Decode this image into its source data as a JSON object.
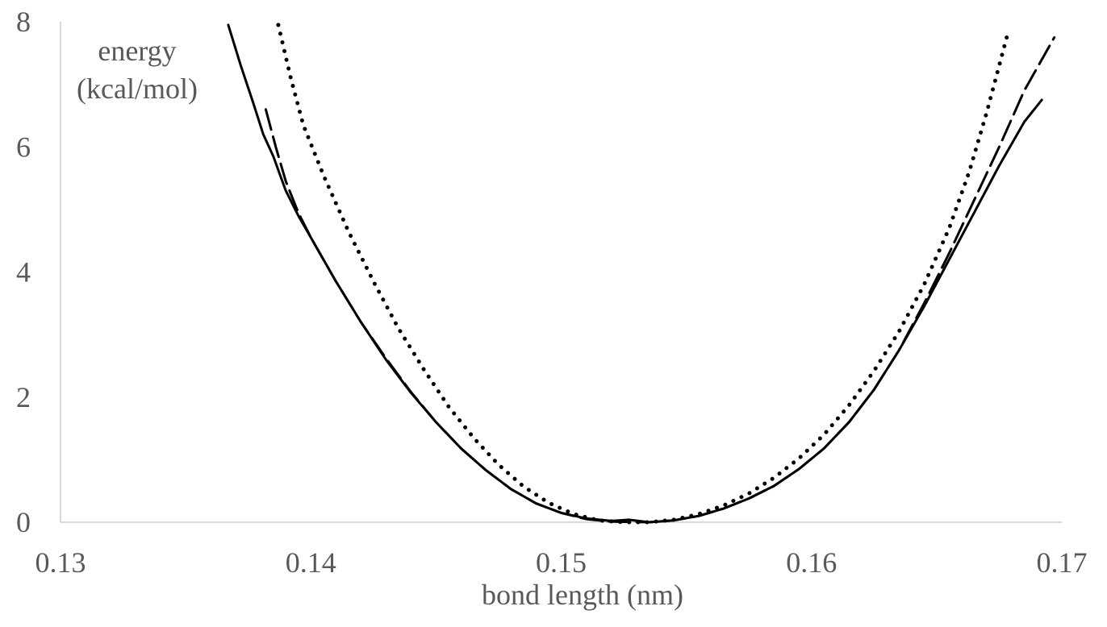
{
  "chart_data": {
    "type": "line",
    "xlabel": "bond length (nm)",
    "ylabel_lines": [
      "energy",
      "(kcal/mol)"
    ],
    "xlim": [
      0.13,
      0.17
    ],
    "ylim": [
      0,
      8
    ],
    "x_ticks": [
      "0.13",
      "0.14",
      "0.15",
      "0.16",
      "0.17"
    ],
    "y_ticks": [
      "0",
      "2",
      "4",
      "6",
      "8"
    ],
    "grid": false,
    "legend": "none",
    "series": [
      {
        "style": "solid",
        "color": "#000000",
        "points": [
          [
            0.1367,
            7.95
          ],
          [
            0.1372,
            7.3
          ],
          [
            0.1377,
            6.7
          ],
          [
            0.1381,
            6.2
          ],
          [
            0.1385,
            5.85
          ],
          [
            0.139,
            5.3
          ],
          [
            0.1395,
            4.9
          ],
          [
            0.14,
            4.55
          ],
          [
            0.141,
            3.85
          ],
          [
            0.142,
            3.2
          ],
          [
            0.143,
            2.6
          ],
          [
            0.144,
            2.07
          ],
          [
            0.145,
            1.6
          ],
          [
            0.146,
            1.18
          ],
          [
            0.147,
            0.83
          ],
          [
            0.148,
            0.53
          ],
          [
            0.149,
            0.3
          ],
          [
            0.15,
            0.15
          ],
          [
            0.151,
            0.06
          ],
          [
            0.152,
            0.02
          ],
          [
            0.1527,
            0.04
          ],
          [
            0.1535,
            0.0
          ],
          [
            0.1545,
            0.03
          ],
          [
            0.1555,
            0.1
          ],
          [
            0.1565,
            0.22
          ],
          [
            0.1575,
            0.38
          ],
          [
            0.1585,
            0.58
          ],
          [
            0.1595,
            0.85
          ],
          [
            0.1605,
            1.18
          ],
          [
            0.1615,
            1.6
          ],
          [
            0.1625,
            2.12
          ],
          [
            0.1635,
            2.75
          ],
          [
            0.1645,
            3.45
          ],
          [
            0.1655,
            4.2
          ],
          [
            0.1665,
            4.95
          ],
          [
            0.1675,
            5.7
          ],
          [
            0.1685,
            6.4
          ],
          [
            0.1692,
            6.75
          ]
        ]
      },
      {
        "style": "dashed",
        "color": "#000000",
        "points": [
          [
            0.1382,
            6.6
          ],
          [
            0.1386,
            6.0
          ],
          [
            0.139,
            5.45
          ],
          [
            0.1395,
            4.95
          ],
          [
            0.14,
            4.55
          ],
          [
            0.141,
            3.85
          ],
          [
            0.142,
            3.2
          ],
          [
            0.143,
            2.62
          ],
          [
            0.144,
            2.08
          ],
          [
            0.145,
            1.6
          ],
          [
            0.146,
            1.18
          ],
          [
            0.147,
            0.83
          ],
          [
            0.148,
            0.53
          ],
          [
            0.149,
            0.3
          ],
          [
            0.15,
            0.15
          ],
          [
            0.151,
            0.05
          ],
          [
            0.152,
            0.01
          ],
          [
            0.1535,
            0.0
          ],
          [
            0.1545,
            0.03
          ],
          [
            0.1555,
            0.1
          ],
          [
            0.1565,
            0.22
          ],
          [
            0.1575,
            0.38
          ],
          [
            0.1585,
            0.58
          ],
          [
            0.1595,
            0.85
          ],
          [
            0.1605,
            1.18
          ],
          [
            0.1615,
            1.6
          ],
          [
            0.1625,
            2.12
          ],
          [
            0.1635,
            2.75
          ],
          [
            0.1645,
            3.5
          ],
          [
            0.1655,
            4.3
          ],
          [
            0.1665,
            5.15
          ],
          [
            0.1675,
            6.0
          ],
          [
            0.1685,
            6.9
          ],
          [
            0.1697,
            7.75
          ]
        ]
      },
      {
        "style": "dotted",
        "color": "#000000",
        "points": [
          [
            0.1387,
            7.95
          ],
          [
            0.1392,
            7.1
          ],
          [
            0.1397,
            6.35
          ],
          [
            0.1405,
            5.55
          ],
          [
            0.1415,
            4.65
          ],
          [
            0.1425,
            3.85
          ],
          [
            0.1435,
            3.1
          ],
          [
            0.1445,
            2.45
          ],
          [
            0.1455,
            1.85
          ],
          [
            0.1465,
            1.35
          ],
          [
            0.1475,
            0.92
          ],
          [
            0.1485,
            0.57
          ],
          [
            0.1495,
            0.31
          ],
          [
            0.1505,
            0.13
          ],
          [
            0.1515,
            0.03
          ],
          [
            0.1525,
            0.0
          ],
          [
            0.1535,
            0.0
          ],
          [
            0.1545,
            0.04
          ],
          [
            0.1555,
            0.13
          ],
          [
            0.1565,
            0.27
          ],
          [
            0.1575,
            0.46
          ],
          [
            0.1585,
            0.71
          ],
          [
            0.1595,
            1.02
          ],
          [
            0.1605,
            1.4
          ],
          [
            0.1615,
            1.87
          ],
          [
            0.1625,
            2.42
          ],
          [
            0.1635,
            3.05
          ],
          [
            0.1645,
            3.8
          ],
          [
            0.1655,
            4.7
          ],
          [
            0.1663,
            5.6
          ],
          [
            0.167,
            6.55
          ],
          [
            0.1675,
            7.3
          ],
          [
            0.1678,
            7.75
          ]
        ]
      }
    ]
  }
}
